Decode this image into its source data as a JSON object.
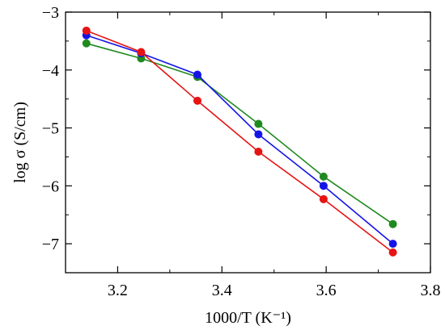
{
  "chart_data": {
    "type": "line",
    "xlabel": "1000/T (K⁻¹)",
    "ylabel": "log σ (S/cm)",
    "xlim": [
      3.1,
      3.8
    ],
    "ylim": [
      -7.5,
      -3.0
    ],
    "x_ticks": [
      3.2,
      3.4,
      3.6,
      3.8
    ],
    "x_tick_labels": [
      "3.2",
      "3.4",
      "3.6",
      "3.8"
    ],
    "y_ticks": [
      -7,
      -6,
      -5,
      -4,
      -3
    ],
    "y_tick_labels": [
      "−7",
      "−6",
      "−5",
      "−4",
      "−3"
    ],
    "grid": false,
    "series": [
      {
        "color": "#1f8a1f",
        "x": [
          3.14,
          3.245,
          3.353,
          3.47,
          3.595,
          3.728
        ],
        "y": [
          -3.54,
          -3.8,
          -4.12,
          -4.93,
          -5.84,
          -6.66
        ]
      },
      {
        "color": "#1414e6",
        "x": [
          3.14,
          3.245,
          3.353,
          3.47,
          3.595,
          3.728
        ],
        "y": [
          -3.4,
          -3.71,
          -4.08,
          -5.11,
          -6.0,
          -7.0
        ]
      },
      {
        "color": "#e61414",
        "x": [
          3.14,
          3.245,
          3.353,
          3.47,
          3.595,
          3.728
        ],
        "y": [
          -3.32,
          -3.69,
          -4.53,
          -5.41,
          -6.23,
          -7.15
        ]
      }
    ]
  }
}
